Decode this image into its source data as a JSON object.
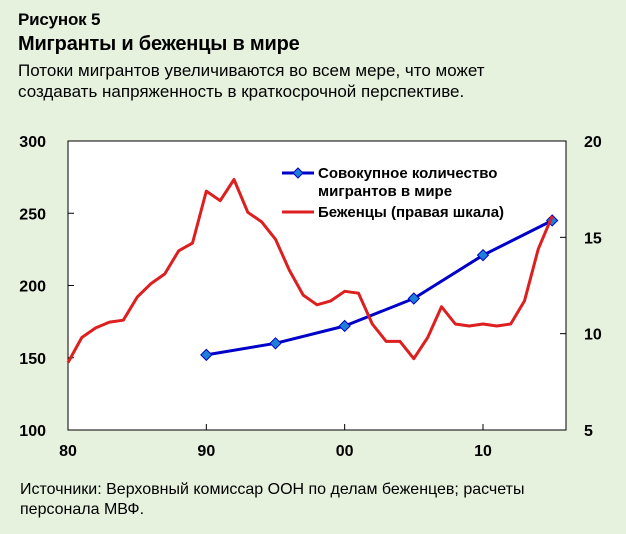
{
  "header": {
    "figure_label": "Рисунок 5",
    "title": "Мигранты и беженцы в мире",
    "subtitle": "Потоки мигрантов увеличиваются во всем мере, что может создавать напряженность в краткосрочной перспективе."
  },
  "footer": {
    "source": "Источники: Верховный комиссар ООН по делам беженцев; расчеты персонала МВФ."
  },
  "colors": {
    "background": "#e6f2de",
    "plot_bg": "#ffffff",
    "migrants": "#0000c8",
    "migrants_marker": "#1f7fd6",
    "refugees": "#dd1f1f"
  },
  "chart_data": {
    "type": "line",
    "x_ticks": [
      {
        "value": 1980,
        "label": "80"
      },
      {
        "value": 1990,
        "label": "90"
      },
      {
        "value": 2000,
        "label": "00"
      },
      {
        "value": 2010,
        "label": "10"
      }
    ],
    "xlim": [
      1980,
      2016
    ],
    "y_left": {
      "lim": [
        100,
        300
      ],
      "ticks": [
        100,
        150,
        200,
        250,
        300
      ]
    },
    "y_right": {
      "lim": [
        5,
        20
      ],
      "ticks": [
        5,
        10,
        15,
        20
      ]
    },
    "series": [
      {
        "name": "Совокупное количество мигрантов в мире",
        "legend_lines": [
          "Совокупное количество",
          "мигрантов в мире"
        ],
        "axis": "left",
        "markers": true,
        "x": [
          1990,
          1995,
          2000,
          2005,
          2010,
          2015
        ],
        "y": [
          152,
          160,
          172,
          191,
          221,
          245
        ]
      },
      {
        "name": "Беженцы (правая шкала)",
        "legend_lines": [
          "Беженцы (правая шкала)"
        ],
        "axis": "right",
        "markers": false,
        "x": [
          1980,
          1981,
          1982,
          1983,
          1984,
          1985,
          1986,
          1987,
          1988,
          1989,
          1990,
          1991,
          1992,
          1993,
          1994,
          1995,
          1996,
          1997,
          1998,
          1999,
          2000,
          2001,
          2002,
          2003,
          2004,
          2005,
          2006,
          2007,
          2008,
          2009,
          2010,
          2011,
          2012,
          2013,
          2014,
          2015
        ],
        "y": [
          8.5,
          9.8,
          10.3,
          10.6,
          10.7,
          11.9,
          12.6,
          13.1,
          14.3,
          14.7,
          17.4,
          16.9,
          18.0,
          16.3,
          15.8,
          14.9,
          13.3,
          12.0,
          11.5,
          11.7,
          12.2,
          12.1,
          10.5,
          9.6,
          9.6,
          8.7,
          9.8,
          11.4,
          10.5,
          10.4,
          10.5,
          10.4,
          10.5,
          11.7,
          14.4,
          16.1
        ]
      }
    ]
  }
}
